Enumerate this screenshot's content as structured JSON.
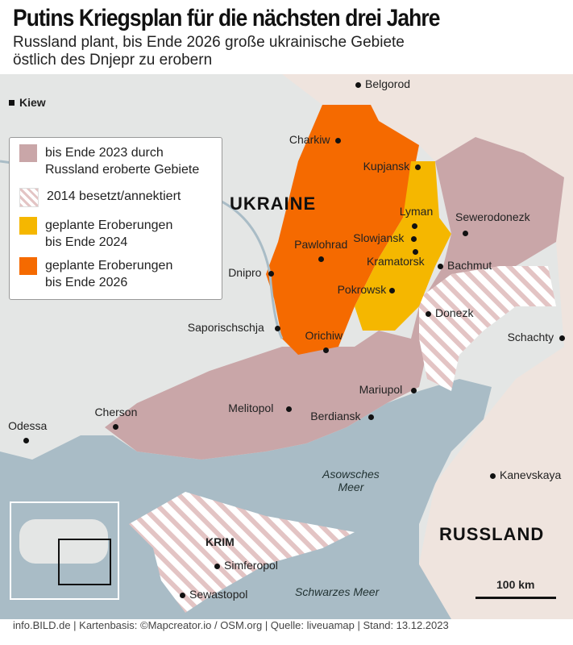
{
  "title": "Putins Kriegsplan für die nächsten drei Jahre",
  "subtitle_line1": "Russland plant, bis Ende 2026 große ukrainische Gebiete",
  "subtitle_line2": "östlich des Dnjepr zu erobern",
  "capital_marker": "Kiew",
  "countries": {
    "ukraine": "UKRAINE",
    "russia": "RUSSLAND"
  },
  "legend": [
    {
      "label1": "bis Ende 2023 durch",
      "label2": "Russland eroberte Gebiete",
      "color": "#c9a6a8"
    },
    {
      "label1": "2014 besetzt/annektiert",
      "label2": "",
      "color": "hatched"
    },
    {
      "label1": "geplante Eroberungen",
      "label2": "bis Ende 2024",
      "color": "#f5b700"
    },
    {
      "label1": "geplante Eroberungen",
      "label2": "bis Ende 2026",
      "color": "#f56a00"
    }
  ],
  "cities": [
    "Belgorod",
    "Charkiw",
    "Kupjansk",
    "Lyman",
    "Sewerodonezk",
    "Slowjansk",
    "Kramatorsk",
    "Bachmut",
    "Pawlohrad",
    "Dnipro",
    "Pokrowsk",
    "Donezk",
    "Schachty",
    "Saporischschja",
    "Orichiw",
    "Mariupol",
    "Melitopol",
    "Berdiansk",
    "Odessa",
    "Cherson",
    "Kanevskaya",
    "Simferopol",
    "Sewastopol"
  ],
  "region_label": "KRIM",
  "seas": {
    "azov1": "Asowsches",
    "azov2": "Meer",
    "black": "Schwarzes Meer"
  },
  "scale": "100 km",
  "footer": "info.BILD.de | Kartenbasis: ©Mapcreator.io / OSM.org | Quelle: liveuamap | Stand: 13.12.2023"
}
